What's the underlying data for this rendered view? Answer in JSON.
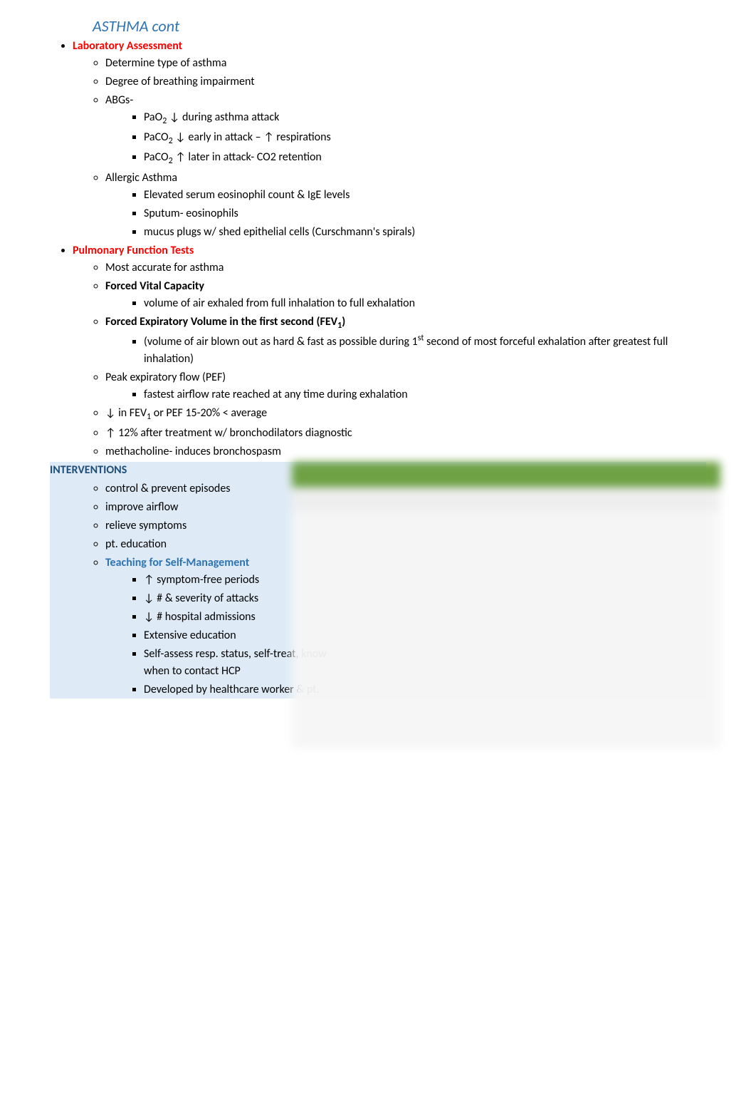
{
  "title": {
    "text": "ASTHMA cont",
    "color": "#2e74b5"
  },
  "labAssessment": {
    "heading": "Laboratory Assessment",
    "headingColor": "#ff0000",
    "items": [
      {
        "text": "Determine type of asthma"
      },
      {
        "text": "Degree of breathing impairment"
      },
      {
        "text": "ABGs-",
        "sub": [
          {
            "html": "PaO<sub>2</sub> ↓ during asthma attack"
          },
          {
            "html": "PaCO<sub>2</sub> ↓ early in attack – ↑ respirations"
          },
          {
            "html": "PaCO<sub>2</sub> ↑ later in attack- CO2 retention"
          }
        ]
      },
      {
        "text": "Allergic Asthma",
        "sub": [
          {
            "text": "Elevated serum eosinophil count & IgE levels"
          },
          {
            "text": "Sputum- eosinophils"
          },
          {
            "text": "mucus plugs w/ shed epithelial cells (Curschmann's spirals)"
          }
        ]
      }
    ]
  },
  "pft": {
    "heading": "Pulmonary Function Tests",
    "headingColor": "#ff0000",
    "items": [
      {
        "text": "Most accurate for asthma"
      },
      {
        "text": "Forced Vital Capacity",
        "bold": true,
        "sub": [
          {
            "text": "volume of air exhaled from full inhalation to full exhalation"
          }
        ]
      },
      {
        "html": "<span class=\"bold\">Forced Expiratory Volume in the first second (FEV<sub>1</sub>)</span>",
        "sub": [
          {
            "html": "(volume of air blown out as hard & fast as possible during 1<sup>st</sup> second of most forceful exhalation after greatest full inhalation)"
          }
        ]
      },
      {
        "text": "Peak expiratory flow (PEF)",
        "sub": [
          {
            "text": "fastest airflow rate reached at any time during exhalation"
          }
        ]
      },
      {
        "html": "↓ in FEV<sub>1</sub> or PEF 15-20% < average"
      },
      {
        "text": "↑ 12% after treatment w/ bronchodilators diagnostic"
      },
      {
        "text": "methacholine- induces bronchospasm"
      }
    ]
  },
  "interventions": {
    "heading": "INTERVENTIONS",
    "headingColor": "#1f4e79",
    "bgColor": "#deebf6",
    "items": [
      {
        "text": "control & prevent episodes"
      },
      {
        "text": "improve airflow"
      },
      {
        "text": "relieve symptoms"
      },
      {
        "text": "pt. education"
      },
      {
        "text": "Teaching for Self-Management",
        "bold": true,
        "color": "#2e74b5",
        "sub": [
          {
            "text": "↑ symptom-free periods"
          },
          {
            "text": "↓ # & severity of attacks"
          },
          {
            "text": "↓ # hospital admissions"
          },
          {
            "text": "Extensive education"
          },
          {
            "text": "Self-assess resp. status, self-treat, know when to contact HCP"
          },
          {
            "text": "Developed by healthcare worker & pt."
          }
        ]
      }
    ]
  }
}
